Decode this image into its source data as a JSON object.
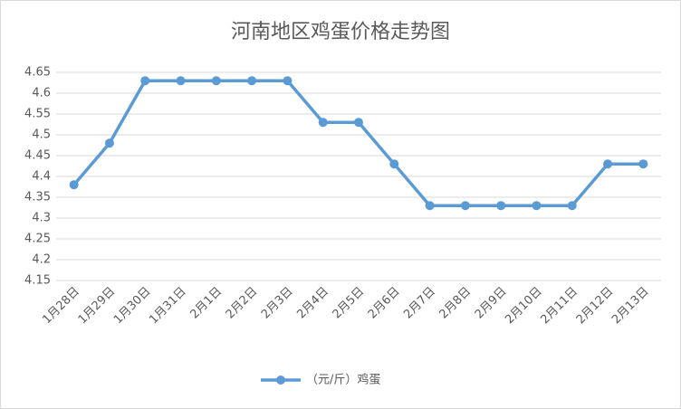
{
  "chart_data": {
    "type": "line",
    "title": "河南地区鸡蛋价格走势图",
    "categories": [
      "1月28日",
      "1月29日",
      "1月30日",
      "1月31日",
      "2月1日",
      "2月2日",
      "2月3日",
      "2月4日",
      "2月5日",
      "2月6日",
      "2月7日",
      "2月8日",
      "2月9日",
      "2月10日",
      "2月11日",
      "2月12日",
      "2月13日"
    ],
    "series": [
      {
        "name": "（元/斤）鸡蛋",
        "color": "#5b9bd5",
        "values": [
          4.38,
          4.48,
          4.63,
          4.63,
          4.63,
          4.63,
          4.63,
          4.53,
          4.53,
          4.43,
          4.33,
          4.33,
          4.33,
          4.33,
          4.33,
          4.43,
          4.43
        ]
      }
    ],
    "ylim": [
      4.15,
      4.65
    ],
    "yticks": [
      4.15,
      4.2,
      4.25,
      4.3,
      4.35,
      4.4,
      4.45,
      4.5,
      4.55,
      4.6,
      4.65
    ],
    "grid": true,
    "legend": "bottom"
  }
}
